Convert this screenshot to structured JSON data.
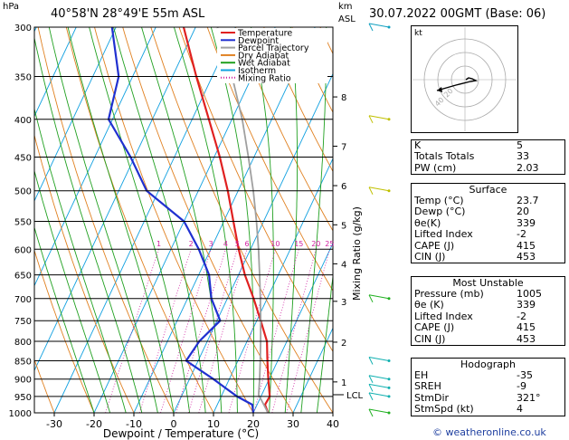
{
  "header": {
    "location": "40°58'N  28°49'E  55m  ASL",
    "datetime": "30.07.2022  00GMT  (Base: 06)",
    "hpa_label": "hPa",
    "km_label": "km",
    "asl_label": "ASL"
  },
  "chart_data": {
    "type": "skew-t log-p",
    "xlabel": "Dewpoint / Temperature (°C)",
    "ylabel_right": "Mixing Ratio (g/kg)",
    "x_ticks": [
      -30,
      -20,
      -10,
      0,
      10,
      20,
      30,
      40
    ],
    "x_tick_labels": [
      "-30",
      "-20",
      "-10",
      "0",
      "10",
      "20",
      "30",
      "40"
    ],
    "xlim": [
      -35,
      40
    ],
    "pressure_levels": [
      300,
      350,
      400,
      450,
      500,
      550,
      600,
      650,
      700,
      750,
      800,
      850,
      900,
      950,
      1000
    ],
    "pressure_labels": [
      "300",
      "350",
      "400",
      "450",
      "500",
      "550",
      "600",
      "650",
      "700",
      "750",
      "800",
      "850",
      "900",
      "950",
      "1000"
    ],
    "ylim": [
      1000,
      300
    ],
    "km_ticks": [
      {
        "km": "1",
        "p": 908
      },
      {
        "km": "2",
        "p": 802
      },
      {
        "km": "3",
        "p": 706
      },
      {
        "km": "4",
        "p": 628
      },
      {
        "km": "5",
        "p": 556
      },
      {
        "km": "6",
        "p": 492
      },
      {
        "km": "7",
        "p": 435
      },
      {
        "km": "8",
        "p": 373
      }
    ],
    "lcl": {
      "label": "LCL",
      "p": 945
    },
    "mixing_ratio_labels": [
      "1",
      "2",
      "3",
      "4",
      "5",
      "6",
      "10",
      "15",
      "20",
      "25"
    ],
    "mixing_ratio_values": [
      1,
      2,
      3,
      4,
      5,
      6,
      10,
      15,
      20,
      25
    ],
    "legend": [
      "Temperature",
      "Dewpoint",
      "Parcel Trajectory",
      "Dry Adiabat",
      "Wet Adiabat",
      "Isotherm",
      "Mixing Ratio"
    ],
    "legend_placement": "top-left inside plot",
    "series": [
      {
        "name": "Temperature",
        "color": "#e02020",
        "points": [
          [
            1000,
            23.7
          ],
          [
            975,
            22.0
          ],
          [
            950,
            22.2
          ],
          [
            925,
            21.0
          ],
          [
            900,
            19.8
          ],
          [
            850,
            17.4
          ],
          [
            800,
            15.0
          ],
          [
            750,
            11.0
          ],
          [
            700,
            6.6
          ],
          [
            650,
            1.6
          ],
          [
            600,
            -3.0
          ],
          [
            550,
            -7.6
          ],
          [
            500,
            -12.6
          ],
          [
            450,
            -18.6
          ],
          [
            400,
            -25.8
          ],
          [
            350,
            -34.0
          ],
          [
            300,
            -43.0
          ]
        ]
      },
      {
        "name": "Dewpoint",
        "color": "#2030d0",
        "points": [
          [
            1000,
            20.0
          ],
          [
            975,
            18.8
          ],
          [
            950,
            14.0
          ],
          [
            925,
            10.0
          ],
          [
            900,
            6.0
          ],
          [
            850,
            -3.0
          ],
          [
            800,
            -2.0
          ],
          [
            750,
            0.8
          ],
          [
            700,
            -4.0
          ],
          [
            650,
            -7.4
          ],
          [
            600,
            -13.0
          ],
          [
            550,
            -20.0
          ],
          [
            500,
            -33.0
          ],
          [
            450,
            -41.0
          ],
          [
            400,
            -51.0
          ],
          [
            350,
            -53.5
          ],
          [
            300,
            -61.0
          ]
        ]
      },
      {
        "name": "Parcel Trajectory",
        "color": "#a0a0a0",
        "points": [
          [
            1000,
            23.7
          ],
          [
            945,
            19.2
          ],
          [
            900,
            17.6
          ],
          [
            850,
            15.6
          ],
          [
            800,
            13.4
          ],
          [
            750,
            11.0
          ],
          [
            700,
            8.3
          ],
          [
            650,
            5.3
          ],
          [
            600,
            2.0
          ],
          [
            550,
            -1.8
          ],
          [
            500,
            -6.2
          ],
          [
            450,
            -11.4
          ],
          [
            400,
            -17.4
          ],
          [
            350,
            -25.0
          ],
          [
            300,
            -34.5
          ]
        ]
      }
    ],
    "wind_barbs_present": true,
    "colors": {
      "temperature": "#e02020",
      "dewpoint": "#2030d0",
      "parcel": "#a0a0a0",
      "dry_adiabat": "#e08020",
      "wet_adiabat": "#20a020",
      "isotherm": "#10a0e0",
      "mixing_ratio": "#d020a0"
    }
  },
  "hodograph": {
    "label": "kt",
    "ring_labels": [
      "20",
      "40"
    ]
  },
  "indices": {
    "rows": [
      {
        "k": "K",
        "v": "5"
      },
      {
        "k": "Totals Totals",
        "v": "33"
      },
      {
        "k": "PW (cm)",
        "v": "2.03"
      }
    ]
  },
  "surface": {
    "title": "Surface",
    "rows": [
      {
        "k": "Temp (°C)",
        "v": "23.7"
      },
      {
        "k": "Dewp (°C)",
        "v": "20"
      },
      {
        "k": "θe(K)",
        "v": "339"
      },
      {
        "k": "Lifted Index",
        "v": "-2"
      },
      {
        "k": "CAPE (J)",
        "v": "415"
      },
      {
        "k": "CIN (J)",
        "v": "453"
      }
    ]
  },
  "most_unstable": {
    "title": "Most Unstable",
    "rows": [
      {
        "k": "Pressure (mb)",
        "v": "1005"
      },
      {
        "k": "θe (K)",
        "v": "339"
      },
      {
        "k": "Lifted Index",
        "v": "-2"
      },
      {
        "k": "CAPE (J)",
        "v": "415"
      },
      {
        "k": "CIN (J)",
        "v": "453"
      }
    ]
  },
  "hodograph_table": {
    "title": "Hodograph",
    "rows": [
      {
        "k": "EH",
        "v": "-35"
      },
      {
        "k": "SREH",
        "v": "-9"
      },
      {
        "k": "StmDir",
        "v": "321°"
      },
      {
        "k": "StmSpd (kt)",
        "v": "4"
      }
    ]
  },
  "copyright": "© weatheronline.co.uk"
}
